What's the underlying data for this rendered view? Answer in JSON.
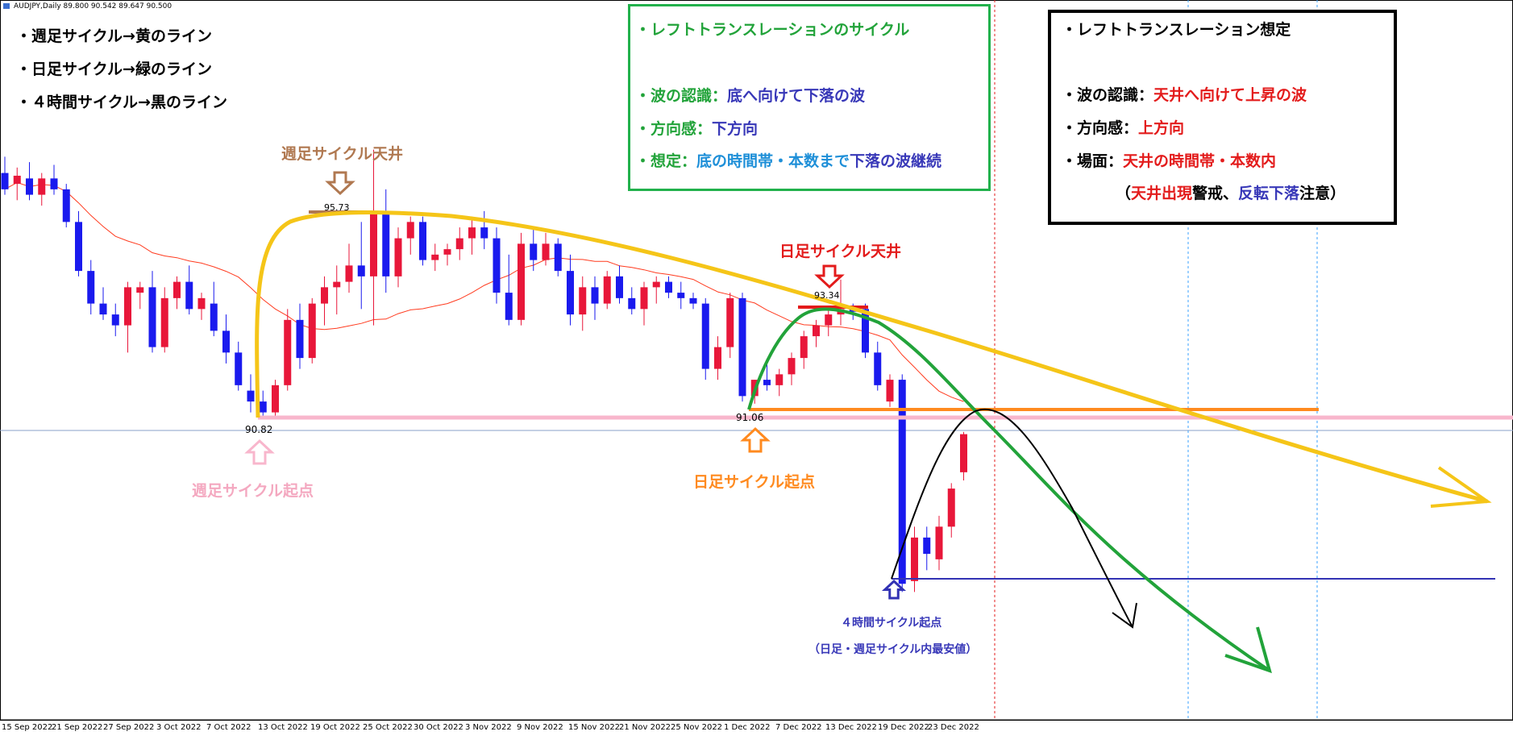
{
  "window": {
    "symbol_info": "AUDJPY,Daily  89.800 90.542 89.647 90.500"
  },
  "legend": [
    {
      "text": "・週足サイクル→黄のライン",
      "color": "#f5c518"
    },
    {
      "text": "・日足サイクル→緑のライン",
      "color": "#22a33a"
    },
    {
      "text": "・４時間サイクル→黒のライン",
      "color": "#000000"
    }
  ],
  "green_box": {
    "title": "・レフトトランスレーションのサイクル",
    "wave_label": "・波の認識：",
    "wave_value": "底へ向けて下落の波",
    "dir_label": "・方向感：",
    "dir_value": "下方向",
    "assume_label": "・想定：",
    "assume_value1": "底の時間帯・本数まで",
    "assume_value2": "下落の波継続"
  },
  "black_box": {
    "title": "・レフトトランスレーション想定",
    "wave_label": "・波の認識：",
    "wave_value": "天井へ向けて上昇の波",
    "dir_label": "・方向感：",
    "dir_value": "上方向",
    "scene_label": "・場面：",
    "scene_value": "天井の時間帯・本数内",
    "note_open": "（",
    "note_red1": "天井出現",
    "note_black1": "警戒、",
    "note_blue": "反転下落",
    "note_black2": "注意）"
  },
  "annotations": {
    "weekly_top": "週足サイクル天井",
    "weekly_top_value": "95.73",
    "weekly_start": "週足サイクル起点",
    "weekly_start_value": "90.82",
    "daily_top": "日足サイクル天井",
    "daily_top_value": "93.34",
    "daily_start": "日足サイクル起点",
    "daily_start_value": "91.06",
    "h4_start": "４時間サイクル起点",
    "h4_note": "（日足・週足サイクル内最安値）"
  },
  "colors": {
    "bull": "#e8173a",
    "bear": "#1a1aee",
    "ma": "#ff3b1f",
    "yellow": "#f5c518",
    "green": "#22a33a",
    "pink": "#f8b6cc",
    "orange": "#ff8a1f",
    "navy": "#3232b4",
    "brown": "#b07850",
    "red": "#e31b1b"
  },
  "chart_data": {
    "type": "candlestick",
    "instrument": "AUDJPY",
    "timeframe": "Daily",
    "x_ticks": [
      "15 Sep 2022",
      "21 Sep 2022",
      "27 Sep 2022",
      "3 Oct 2022",
      "7 Oct 2022",
      "13 Oct 2022",
      "19 Oct 2022",
      "25 Oct 2022",
      "30 Oct 2022",
      "3 Nov 2022",
      "9 Nov 2022",
      "15 Nov 2022",
      "21 Nov 2022",
      "25 Nov 2022",
      "1 Dec 2022",
      "7 Dec 2022",
      "13 Dec 2022",
      "19 Dec 2022",
      "23 Dec 2022"
    ],
    "price_labels": [
      95.73,
      90.82,
      93.34,
      91.06
    ],
    "candles": [
      {
        "o": 95.3,
        "h": 95.6,
        "l": 94.9,
        "c": 95.0
      },
      {
        "o": 95.1,
        "h": 95.4,
        "l": 94.8,
        "c": 95.25
      },
      {
        "o": 95.2,
        "h": 95.5,
        "l": 94.8,
        "c": 94.9
      },
      {
        "o": 94.9,
        "h": 95.3,
        "l": 94.7,
        "c": 95.2
      },
      {
        "o": 95.2,
        "h": 95.45,
        "l": 94.9,
        "c": 95.0
      },
      {
        "o": 95.0,
        "h": 95.1,
        "l": 94.3,
        "c": 94.4
      },
      {
        "o": 94.4,
        "h": 94.6,
        "l": 93.4,
        "c": 93.5
      },
      {
        "o": 93.5,
        "h": 93.7,
        "l": 92.7,
        "c": 92.9
      },
      {
        "o": 92.9,
        "h": 93.2,
        "l": 92.6,
        "c": 92.7
      },
      {
        "o": 92.7,
        "h": 92.9,
        "l": 92.3,
        "c": 92.5
      },
      {
        "o": 92.5,
        "h": 93.3,
        "l": 92.0,
        "c": 93.2
      },
      {
        "o": 93.1,
        "h": 93.3,
        "l": 92.8,
        "c": 93.2
      },
      {
        "o": 93.2,
        "h": 93.5,
        "l": 92.0,
        "c": 92.1
      },
      {
        "o": 92.1,
        "h": 93.2,
        "l": 92.0,
        "c": 93.0
      },
      {
        "o": 93.0,
        "h": 93.4,
        "l": 92.8,
        "c": 93.3
      },
      {
        "o": 93.3,
        "h": 93.6,
        "l": 92.7,
        "c": 92.8
      },
      {
        "o": 92.8,
        "h": 93.1,
        "l": 92.6,
        "c": 93.0
      },
      {
        "o": 92.9,
        "h": 93.3,
        "l": 92.3,
        "c": 92.4
      },
      {
        "o": 92.4,
        "h": 92.7,
        "l": 91.8,
        "c": 92.0
      },
      {
        "o": 92.0,
        "h": 92.2,
        "l": 91.3,
        "c": 91.4
      },
      {
        "o": 91.3,
        "h": 91.6,
        "l": 90.9,
        "c": 91.1
      },
      {
        "o": 91.1,
        "h": 91.3,
        "l": 90.8,
        "c": 90.9
      },
      {
        "o": 90.9,
        "h": 91.5,
        "l": 90.82,
        "c": 91.4
      },
      {
        "o": 91.4,
        "h": 92.8,
        "l": 91.3,
        "c": 92.6
      },
      {
        "o": 92.6,
        "h": 92.9,
        "l": 91.7,
        "c": 91.9
      },
      {
        "o": 91.9,
        "h": 93.0,
        "l": 91.8,
        "c": 92.9
      },
      {
        "o": 92.9,
        "h": 93.4,
        "l": 92.5,
        "c": 93.2
      },
      {
        "o": 93.2,
        "h": 93.6,
        "l": 92.7,
        "c": 93.3
      },
      {
        "o": 93.3,
        "h": 94.0,
        "l": 93.1,
        "c": 93.6
      },
      {
        "o": 93.6,
        "h": 94.4,
        "l": 92.8,
        "c": 93.4
      },
      {
        "o": 93.4,
        "h": 95.73,
        "l": 92.5,
        "c": 94.6
      },
      {
        "o": 94.6,
        "h": 95.0,
        "l": 93.1,
        "c": 93.4
      },
      {
        "o": 93.4,
        "h": 94.3,
        "l": 93.2,
        "c": 94.1
      },
      {
        "o": 94.1,
        "h": 94.5,
        "l": 93.8,
        "c": 94.4
      },
      {
        "o": 94.4,
        "h": 94.5,
        "l": 93.6,
        "c": 93.7
      },
      {
        "o": 93.7,
        "h": 94.0,
        "l": 93.5,
        "c": 93.8
      },
      {
        "o": 93.8,
        "h": 94.0,
        "l": 93.6,
        "c": 93.9
      },
      {
        "o": 93.9,
        "h": 94.3,
        "l": 93.7,
        "c": 94.1
      },
      {
        "o": 94.1,
        "h": 94.5,
        "l": 93.8,
        "c": 94.3
      },
      {
        "o": 94.3,
        "h": 94.6,
        "l": 93.9,
        "c": 94.1
      },
      {
        "o": 94.1,
        "h": 94.3,
        "l": 92.9,
        "c": 93.1
      },
      {
        "o": 93.1,
        "h": 93.8,
        "l": 92.5,
        "c": 92.6
      },
      {
        "o": 92.6,
        "h": 94.2,
        "l": 92.5,
        "c": 94.0
      },
      {
        "o": 94.0,
        "h": 94.3,
        "l": 93.5,
        "c": 93.7
      },
      {
        "o": 93.7,
        "h": 94.2,
        "l": 93.6,
        "c": 94.0
      },
      {
        "o": 94.0,
        "h": 94.1,
        "l": 93.4,
        "c": 93.5
      },
      {
        "o": 93.5,
        "h": 93.8,
        "l": 92.5,
        "c": 92.7
      },
      {
        "o": 92.7,
        "h": 93.4,
        "l": 92.4,
        "c": 93.2
      },
      {
        "o": 93.2,
        "h": 93.4,
        "l": 92.6,
        "c": 92.9
      },
      {
        "o": 92.9,
        "h": 93.5,
        "l": 92.8,
        "c": 93.4
      },
      {
        "o": 93.4,
        "h": 93.6,
        "l": 92.9,
        "c": 93.0
      },
      {
        "o": 93.0,
        "h": 93.2,
        "l": 92.7,
        "c": 92.8
      },
      {
        "o": 92.8,
        "h": 93.3,
        "l": 92.5,
        "c": 93.2
      },
      {
        "o": 93.2,
        "h": 93.4,
        "l": 92.9,
        "c": 93.3
      },
      {
        "o": 93.3,
        "h": 93.4,
        "l": 93.0,
        "c": 93.1
      },
      {
        "o": 93.1,
        "h": 93.3,
        "l": 92.8,
        "c": 93.0
      },
      {
        "o": 93.0,
        "h": 93.1,
        "l": 92.8,
        "c": 92.9
      },
      {
        "o": 92.9,
        "h": 93.0,
        "l": 91.5,
        "c": 91.7
      },
      {
        "o": 91.7,
        "h": 92.3,
        "l": 91.5,
        "c": 92.1
      },
      {
        "o": 92.1,
        "h": 93.1,
        "l": 91.9,
        "c": 93.0
      },
      {
        "o": 93.0,
        "h": 93.1,
        "l": 91.1,
        "c": 91.2
      },
      {
        "o": 91.2,
        "h": 91.5,
        "l": 91.06,
        "c": 91.5
      },
      {
        "o": 91.5,
        "h": 91.8,
        "l": 91.3,
        "c": 91.4
      },
      {
        "o": 91.4,
        "h": 91.7,
        "l": 91.2,
        "c": 91.6
      },
      {
        "o": 91.6,
        "h": 92.0,
        "l": 91.4,
        "c": 91.9
      },
      {
        "o": 91.9,
        "h": 92.4,
        "l": 91.7,
        "c": 92.3
      },
      {
        "o": 92.3,
        "h": 92.6,
        "l": 92.1,
        "c": 92.5
      },
      {
        "o": 92.5,
        "h": 92.8,
        "l": 92.3,
        "c": 92.7
      },
      {
        "o": 92.7,
        "h": 93.34,
        "l": 92.5,
        "c": 92.8
      },
      {
        "o": 92.8,
        "h": 92.9,
        "l": 92.6,
        "c": 92.75
      },
      {
        "o": 92.8,
        "h": 92.9,
        "l": 91.9,
        "c": 92.0
      },
      {
        "o": 92.0,
        "h": 92.2,
        "l": 91.3,
        "c": 91.4
      },
      {
        "o": 91.1,
        "h": 91.6,
        "l": 91.0,
        "c": 91.5
      },
      {
        "o": 91.5,
        "h": 91.6,
        "l": 87.6,
        "c": 87.75
      },
      {
        "o": 87.8,
        "h": 88.8,
        "l": 87.6,
        "c": 88.6
      },
      {
        "o": 88.6,
        "h": 88.8,
        "l": 88.0,
        "c": 88.3
      },
      {
        "o": 88.2,
        "h": 89.0,
        "l": 88.0,
        "c": 88.8
      },
      {
        "o": 88.8,
        "h": 89.6,
        "l": 88.6,
        "c": 89.5
      },
      {
        "o": 89.8,
        "h": 90.54,
        "l": 89.65,
        "c": 90.5
      }
    ]
  }
}
